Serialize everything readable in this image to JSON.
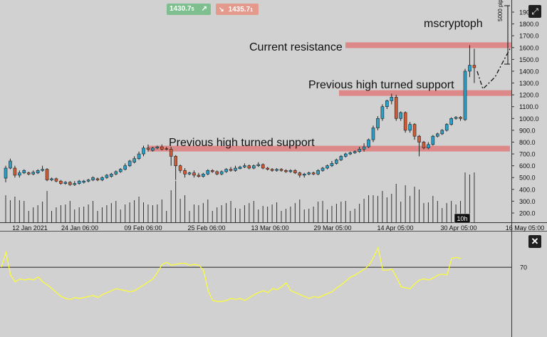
{
  "trade_buttons": {
    "buy_price": "1430.7",
    "buy_suffix": "5",
    "buy_arrow": "↗",
    "sell_arrow": "↘",
    "sell_price": "1435.7",
    "sell_suffix": "1"
  },
  "annotations": {
    "watermark": "mscryptoph",
    "current_resistance": "Current resistance",
    "support_upper": "Previous high turned support",
    "support_lower": "Previous high turned support",
    "pips_measure": "5000 pips"
  },
  "icons": {
    "expand": "expand-icon",
    "close": "close-icon"
  },
  "colors": {
    "background": "#d1d1d1",
    "bull_candle": "#2aa0c9",
    "bear_candle": "#d65a31",
    "zone": "#e07d7d",
    "indicator_line": "#ffff33"
  },
  "chart_data": [
    {
      "type": "candlestick",
      "y_ticks": [
        "1900.0",
        "1800.0",
        "1700.0",
        "1600.0",
        "1500.0",
        "1400.0",
        "1300.0",
        "1200.0",
        "1100.0",
        "1000.0",
        "900.0",
        "800.0",
        "700.0",
        "600.0",
        "500.0",
        "400.0",
        "300.0",
        "200.0"
      ],
      "x_ticks": [
        "12 Jan 2021",
        "24 Jan 06:00",
        "09 Feb 06:00",
        "25 Feb 06:00",
        "13 Mar 06:00",
        "29 Mar 05:00",
        "14 Apr 05:00",
        "30 Apr 05:00",
        "16 May 05:00"
      ],
      "ylim": [
        150,
        1950
      ],
      "crosshair_label": "10h",
      "zones": [
        {
          "label": "Current resistance",
          "price": 1620
        },
        {
          "label": "Previous high turned support",
          "price": 1215
        },
        {
          "label": "Previous high turned support",
          "price": 745
        }
      ],
      "projection": [
        {
          "price": 1400
        },
        {
          "price": 1250
        },
        {
          "price": 1350
        },
        {
          "price": 1500
        },
        {
          "price": 1590
        }
      ],
      "candles": [
        [
          495,
          580,
          460,
          600
        ],
        [
          580,
          640,
          570,
          660
        ],
        [
          580,
          520,
          500,
          600
        ],
        [
          520,
          540,
          500,
          560
        ],
        [
          540,
          560,
          530,
          570
        ],
        [
          540,
          530,
          520,
          550
        ],
        [
          530,
          545,
          520,
          560
        ],
        [
          540,
          560,
          530,
          570
        ],
        [
          560,
          570,
          550,
          600
        ],
        [
          570,
          480,
          470,
          580
        ],
        [
          480,
          490,
          470,
          500
        ],
        [
          490,
          470,
          460,
          500
        ],
        [
          470,
          450,
          440,
          480
        ],
        [
          450,
          460,
          440,
          470
        ],
        [
          460,
          440,
          430,
          470
        ],
        [
          440,
          450,
          430,
          470
        ],
        [
          450,
          470,
          440,
          480
        ],
        [
          460,
          470,
          450,
          480
        ],
        [
          470,
          480,
          460,
          490
        ],
        [
          480,
          500,
          470,
          510
        ],
        [
          490,
          480,
          470,
          500
        ],
        [
          480,
          500,
          470,
          510
        ],
        [
          500,
          520,
          490,
          530
        ],
        [
          510,
          530,
          500,
          540
        ],
        [
          530,
          550,
          520,
          560
        ],
        [
          550,
          570,
          540,
          580
        ],
        [
          570,
          600,
          560,
          620
        ],
        [
          600,
          640,
          590,
          650
        ],
        [
          630,
          660,
          620,
          680
        ],
        [
          660,
          700,
          650,
          720
        ],
        [
          700,
          750,
          680,
          770
        ],
        [
          750,
          740,
          720,
          780
        ],
        [
          730,
          750,
          720,
          760
        ],
        [
          750,
          760,
          740,
          770
        ],
        [
          760,
          740,
          730,
          780
        ],
        [
          745,
          740,
          730,
          760
        ],
        [
          740,
          680,
          600,
          760
        ],
        [
          680,
          600,
          480,
          690
        ],
        [
          600,
          560,
          540,
          610
        ],
        [
          560,
          530,
          500,
          580
        ],
        [
          530,
          540,
          520,
          550
        ],
        [
          540,
          520,
          500,
          560
        ],
        [
          520,
          510,
          500,
          540
        ],
        [
          510,
          530,
          500,
          540
        ],
        [
          530,
          560,
          520,
          570
        ],
        [
          560,
          550,
          540,
          570
        ],
        [
          550,
          530,
          520,
          560
        ],
        [
          530,
          550,
          520,
          560
        ],
        [
          550,
          570,
          540,
          580
        ],
        [
          570,
          560,
          550,
          590
        ],
        [
          560,
          580,
          550,
          600
        ],
        [
          575,
          590,
          570,
          600
        ],
        [
          590,
          600,
          580,
          620
        ],
        [
          600,
          580,
          570,
          610
        ],
        [
          580,
          600,
          570,
          610
        ],
        [
          600,
          610,
          590,
          630
        ],
        [
          610,
          580,
          570,
          620
        ],
        [
          580,
          570,
          560,
          590
        ],
        [
          570,
          560,
          550,
          580
        ],
        [
          560,
          570,
          550,
          580
        ],
        [
          570,
          560,
          550,
          580
        ],
        [
          560,
          550,
          540,
          570
        ],
        [
          550,
          560,
          540,
          570
        ],
        [
          560,
          540,
          530,
          570
        ],
        [
          540,
          520,
          500,
          550
        ],
        [
          520,
          530,
          500,
          540
        ],
        [
          530,
          540,
          520,
          550
        ],
        [
          540,
          530,
          520,
          550
        ],
        [
          530,
          560,
          520,
          570
        ],
        [
          560,
          580,
          550,
          590
        ],
        [
          580,
          600,
          570,
          610
        ],
        [
          600,
          620,
          590,
          640
        ],
        [
          620,
          650,
          610,
          660
        ],
        [
          650,
          680,
          640,
          690
        ],
        [
          680,
          700,
          670,
          710
        ],
        [
          700,
          710,
          690,
          720
        ],
        [
          710,
          720,
          700,
          730
        ],
        [
          720,
          740,
          710,
          760
        ],
        [
          740,
          760,
          720,
          790
        ],
        [
          760,
          820,
          750,
          830
        ],
        [
          820,
          920,
          800,
          940
        ],
        [
          920,
          1000,
          900,
          1020
        ],
        [
          1000,
          1100,
          980,
          1120
        ],
        [
          1100,
          1150,
          1080,
          1160
        ],
        [
          1150,
          1180,
          1120,
          1210
        ],
        [
          1180,
          1000,
          980,
          1200
        ],
        [
          1000,
          1050,
          980,
          1060
        ],
        [
          1050,
          900,
          880,
          1060
        ],
        [
          900,
          950,
          880,
          970
        ],
        [
          950,
          850,
          820,
          960
        ],
        [
          850,
          800,
          680,
          860
        ],
        [
          800,
          750,
          740,
          810
        ],
        [
          750,
          780,
          740,
          800
        ],
        [
          780,
          850,
          770,
          860
        ],
        [
          850,
          870,
          840,
          880
        ],
        [
          870,
          900,
          860,
          910
        ],
        [
          900,
          950,
          890,
          960
        ],
        [
          950,
          1000,
          940,
          1010
        ],
        [
          1000,
          1010,
          990,
          1020
        ],
        [
          1010,
          1000,
          980,
          1020
        ],
        [
          990,
          1400,
          980,
          1420
        ],
        [
          1400,
          1450,
          1350,
          1620
        ],
        [
          1450,
          1430,
          1300,
          1590
        ]
      ],
      "volume_max": 500
    },
    {
      "type": "line",
      "y_ticks": [
        "70"
      ],
      "ylim": [
        0,
        100
      ],
      "series": [
        {
          "values": [
            70,
            85,
            62,
            55,
            58,
            57,
            58,
            57,
            60,
            55,
            52,
            48,
            44,
            40,
            38,
            37,
            39,
            38,
            39,
            40,
            41,
            39,
            42,
            44,
            46,
            48,
            47,
            46,
            45,
            46,
            49,
            52,
            55,
            58,
            65,
            73,
            75,
            72,
            73,
            74,
            74,
            72,
            73,
            72,
            67,
            46,
            36,
            35,
            35,
            36,
            38,
            37,
            38,
            36,
            39,
            42,
            44,
            46,
            44,
            48,
            47,
            50,
            54,
            46,
            44,
            42,
            40,
            38,
            40,
            39,
            41,
            43,
            45,
            49,
            52,
            56,
            60,
            62,
            65,
            68,
            72,
            80,
            90,
            67,
            67,
            68,
            60,
            50,
            49,
            48,
            53,
            57,
            58,
            57,
            59,
            62,
            63,
            62,
            79,
            80,
            79
          ]
        }
      ]
    }
  ]
}
